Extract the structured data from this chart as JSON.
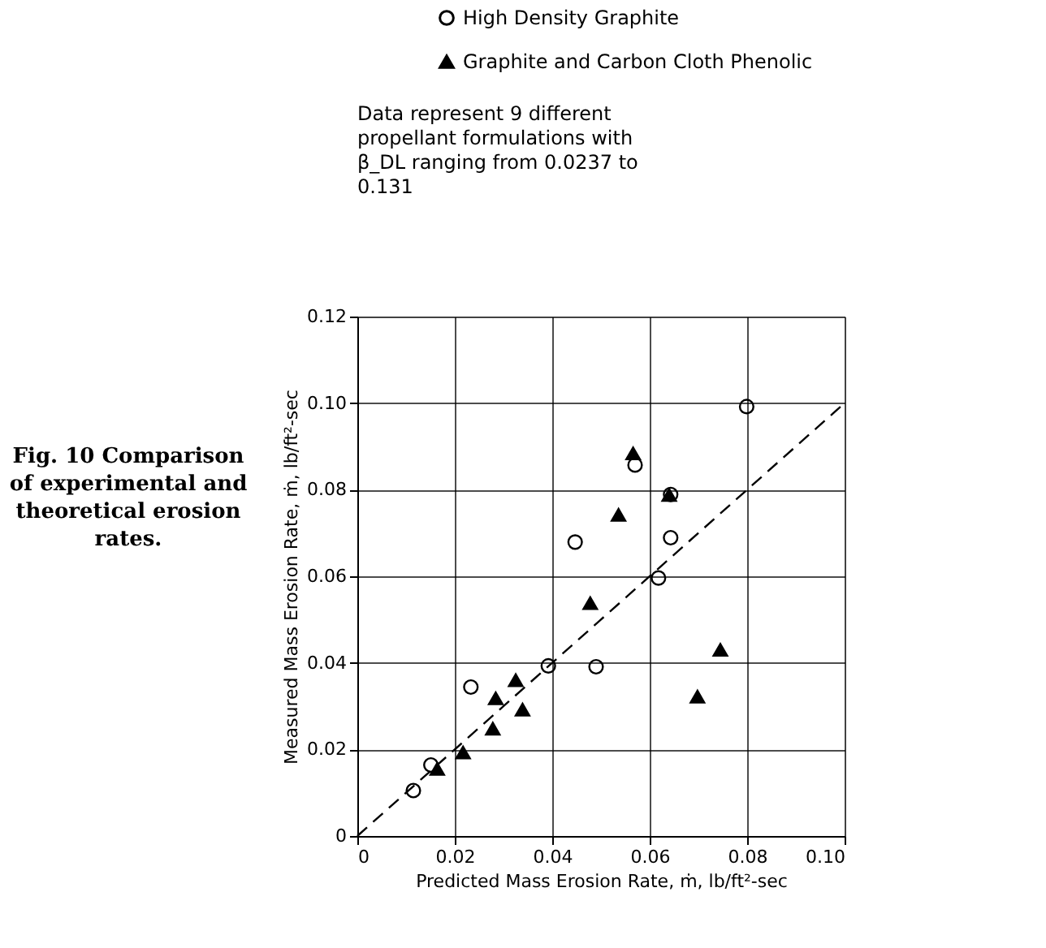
{
  "chart_data": {
    "type": "scatter",
    "xlabel": "Predicted Mass Erosion Rate, ṁ, lb/ft²-sec",
    "ylabel": "Measured Mass Erosion Rate, ṁ, lb/ft²-sec",
    "annotations": [
      "Fig. 10 Comparison of experimental and theoretical erosion rates.",
      "Data represent 9 different propellant formulations with β_DL ranging from 0.0237 to 0.131"
    ],
    "series": [
      {
        "name": "High Density Graphite",
        "color": "#000000",
        "marker": "circle",
        "x": [
          0.0115,
          0.0151,
          0.0233,
          0.0392,
          0.049,
          0.0799,
          0.057,
          0.0643,
          0.0447,
          0.0643,
          0.0618
        ],
        "values": [
          0.0105,
          0.0164,
          0.0344,
          0.0393,
          0.0391,
          0.0992,
          0.0857,
          0.0789,
          0.0679,
          0.0689,
          0.0596
        ]
      },
      {
        "name": "Graphite and Carbon Cloth Phenolic",
        "color": "#000000",
        "marker": "triangle",
        "x": [
          0.0164,
          0.0217,
          0.0278,
          0.0284,
          0.0325,
          0.0339,
          0.0698,
          0.0745,
          0.0566,
          0.064,
          0.0536,
          0.0478
        ],
        "values": [
          0.0155,
          0.0193,
          0.0248,
          0.0318,
          0.036,
          0.0292,
          0.0322,
          0.043,
          0.0884,
          0.0788,
          0.0742,
          0.0538
        ]
      },
      {
        "type": "line",
        "color": "#000000",
        "line_style": "dashed",
        "x": [
          0,
          0.1
        ],
        "values": [
          0,
          0.1
        ]
      }
    ],
    "xlim": [
      0,
      0.1
    ],
    "xticks": [
      0,
      0.02,
      0.04,
      0.06,
      0.08,
      {
        "value": 0.1,
        "label": "0.10"
      }
    ],
    "ylim": [
      0,
      0.12
    ],
    "yticks": [
      0,
      0.02,
      0.04,
      0.06,
      0.08,
      {
        "value": 0.1,
        "label": "0.10"
      },
      0.12
    ],
    "grid": true,
    "legend": "top"
  }
}
